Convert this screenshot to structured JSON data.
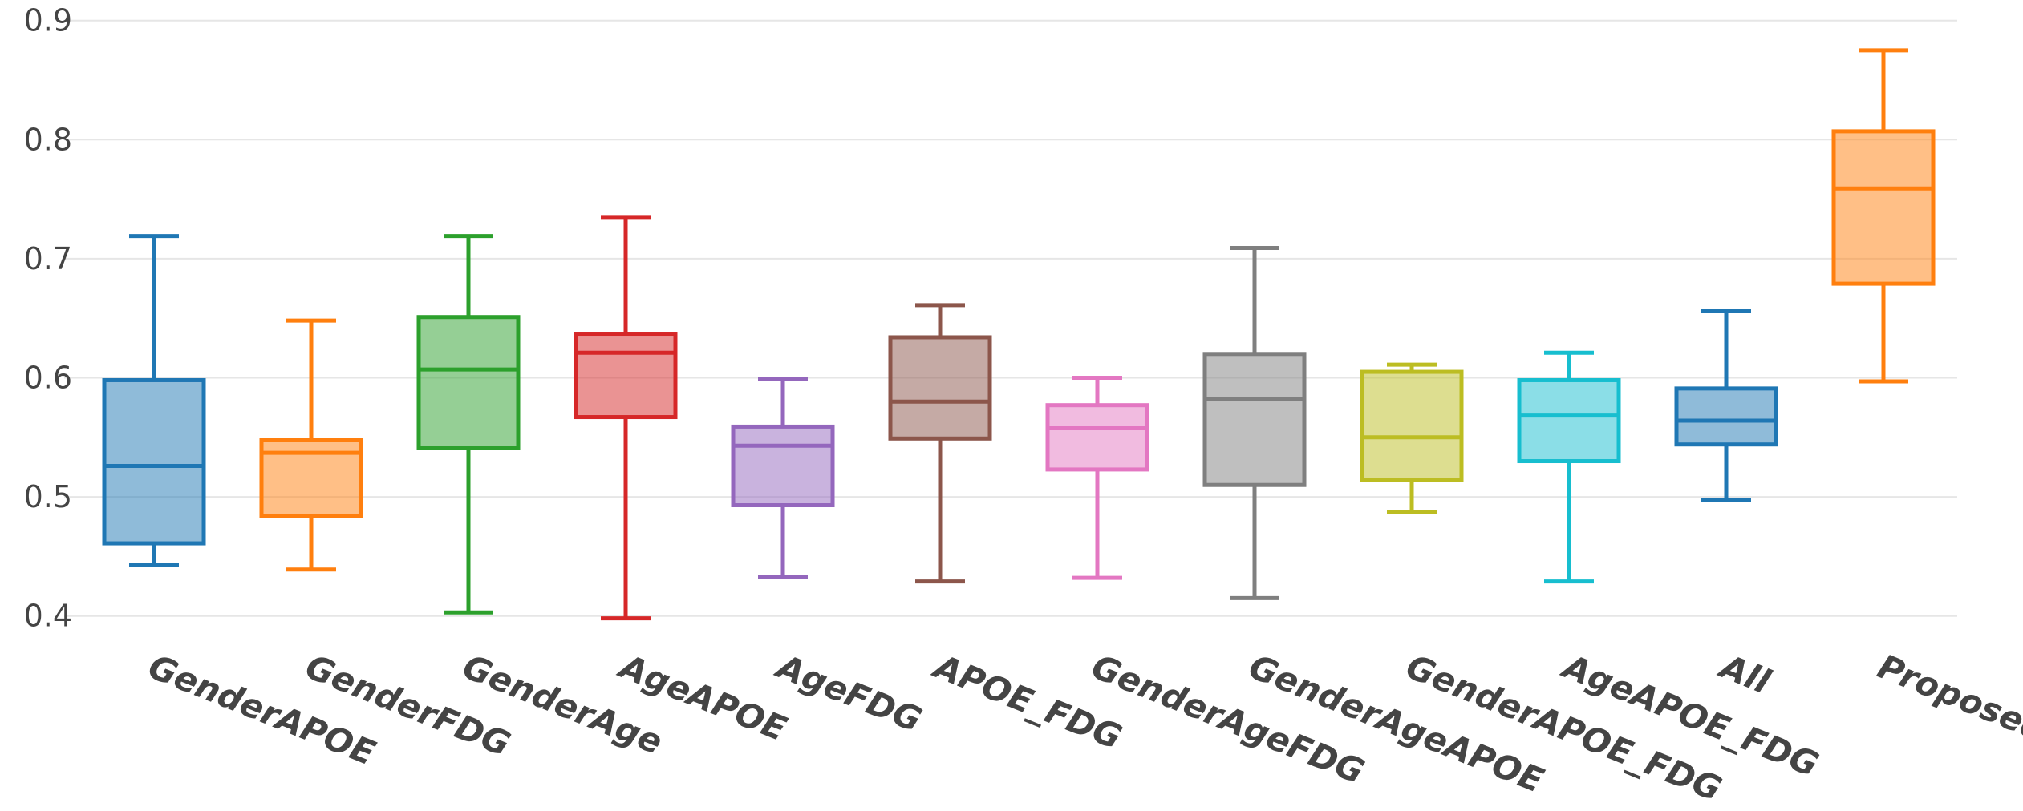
{
  "chart_data": {
    "type": "box",
    "title": "",
    "xlabel": "",
    "ylabel": "",
    "ylim": [
      0.39,
      0.9
    ],
    "yticks": [
      "0.4",
      "0.5",
      "0.6",
      "0.7",
      "0.8",
      "0.9"
    ],
    "grid": true,
    "categories": [
      "GenderAPOE",
      "GenderFDG",
      "GenderAge",
      "AgeAPOE",
      "AgeFDG",
      "APOE_FDG",
      "GenderAgeFDG",
      "GenderAgeAPOE",
      "GenderAPOE_FDG",
      "AgeAPOE_FDG",
      "All",
      "Proposed"
    ],
    "series": [
      {
        "category": "GenderAPOE",
        "color": "#1f77b4",
        "min": 0.443,
        "q1": 0.461,
        "median": 0.526,
        "q3": 0.598,
        "max": 0.719
      },
      {
        "category": "GenderFDG",
        "color": "#ff7f0e",
        "min": 0.439,
        "q1": 0.484,
        "median": 0.537,
        "q3": 0.548,
        "max": 0.648
      },
      {
        "category": "GenderAge",
        "color": "#2ca02c",
        "min": 0.403,
        "q1": 0.541,
        "median": 0.607,
        "q3": 0.651,
        "max": 0.719
      },
      {
        "category": "AgeAPOE",
        "color": "#d62728",
        "min": 0.398,
        "q1": 0.567,
        "median": 0.621,
        "q3": 0.637,
        "max": 0.735
      },
      {
        "category": "AgeFDG",
        "color": "#9467bd",
        "min": 0.433,
        "q1": 0.493,
        "median": 0.543,
        "q3": 0.559,
        "max": 0.599
      },
      {
        "category": "APOE_FDG",
        "color": "#8c564b",
        "min": 0.429,
        "q1": 0.549,
        "median": 0.58,
        "q3": 0.634,
        "max": 0.661
      },
      {
        "category": "GenderAgeFDG",
        "color": "#e377c2",
        "min": 0.432,
        "q1": 0.523,
        "median": 0.558,
        "q3": 0.577,
        "max": 0.6
      },
      {
        "category": "GenderAgeAPOE",
        "color": "#7f7f7f",
        "min": 0.415,
        "q1": 0.51,
        "median": 0.582,
        "q3": 0.62,
        "max": 0.709
      },
      {
        "category": "GenderAPOE_FDG",
        "color": "#bcbd22",
        "min": 0.487,
        "q1": 0.514,
        "median": 0.55,
        "q3": 0.605,
        "max": 0.611
      },
      {
        "category": "AgeAPOE_FDG",
        "color": "#17becf",
        "min": 0.429,
        "q1": 0.53,
        "median": 0.569,
        "q3": 0.598,
        "max": 0.621
      },
      {
        "category": "All",
        "color": "#1f77b4",
        "min": 0.497,
        "q1": 0.544,
        "median": 0.564,
        "q3": 0.591,
        "max": 0.656
      },
      {
        "category": "Proposed",
        "color": "#ff7f0e",
        "min": 0.597,
        "q1": 0.679,
        "median": 0.759,
        "q3": 0.807,
        "max": 0.875
      }
    ]
  }
}
